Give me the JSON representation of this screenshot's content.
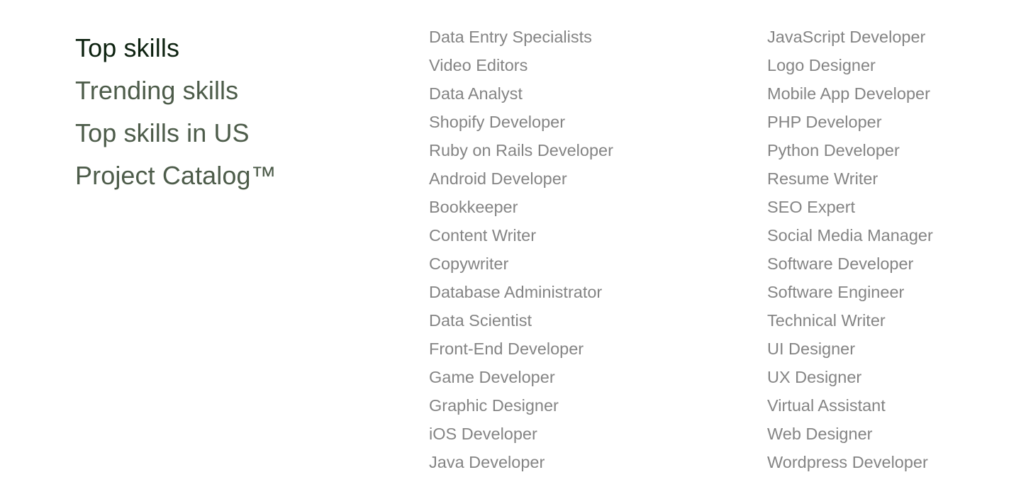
{
  "categories": [
    {
      "label": "Top skills",
      "active": true
    },
    {
      "label": "Trending skills",
      "active": false
    },
    {
      "label": "Top skills in US",
      "active": false
    },
    {
      "label": "Project Catalog™",
      "active": false
    }
  ],
  "skills_col1": [
    "Data Entry Specialists",
    "Video Editors",
    "Data Analyst",
    "Shopify Developer",
    "Ruby on Rails Developer",
    "Android Developer",
    "Bookkeeper",
    "Content Writer",
    "Copywriter",
    "Database Administrator",
    "Data Scientist",
    "Front-End Developer",
    "Game Developer",
    "Graphic Designer",
    "iOS Developer",
    "Java Developer"
  ],
  "skills_col2": [
    "JavaScript Developer",
    "Logo Designer",
    "Mobile App Developer",
    "PHP Developer",
    "Python Developer",
    "Resume Writer",
    "SEO Expert",
    "Social Media Manager",
    "Software Developer",
    "Software Engineer",
    "Technical Writer",
    "UI Designer",
    "UX Designer",
    "Virtual Assistant",
    "Web Designer",
    "Wordpress Developer"
  ],
  "colors": {
    "active_category": "#0d2210",
    "inactive_category": "#4d5c4a",
    "skill_link": "#848484"
  }
}
